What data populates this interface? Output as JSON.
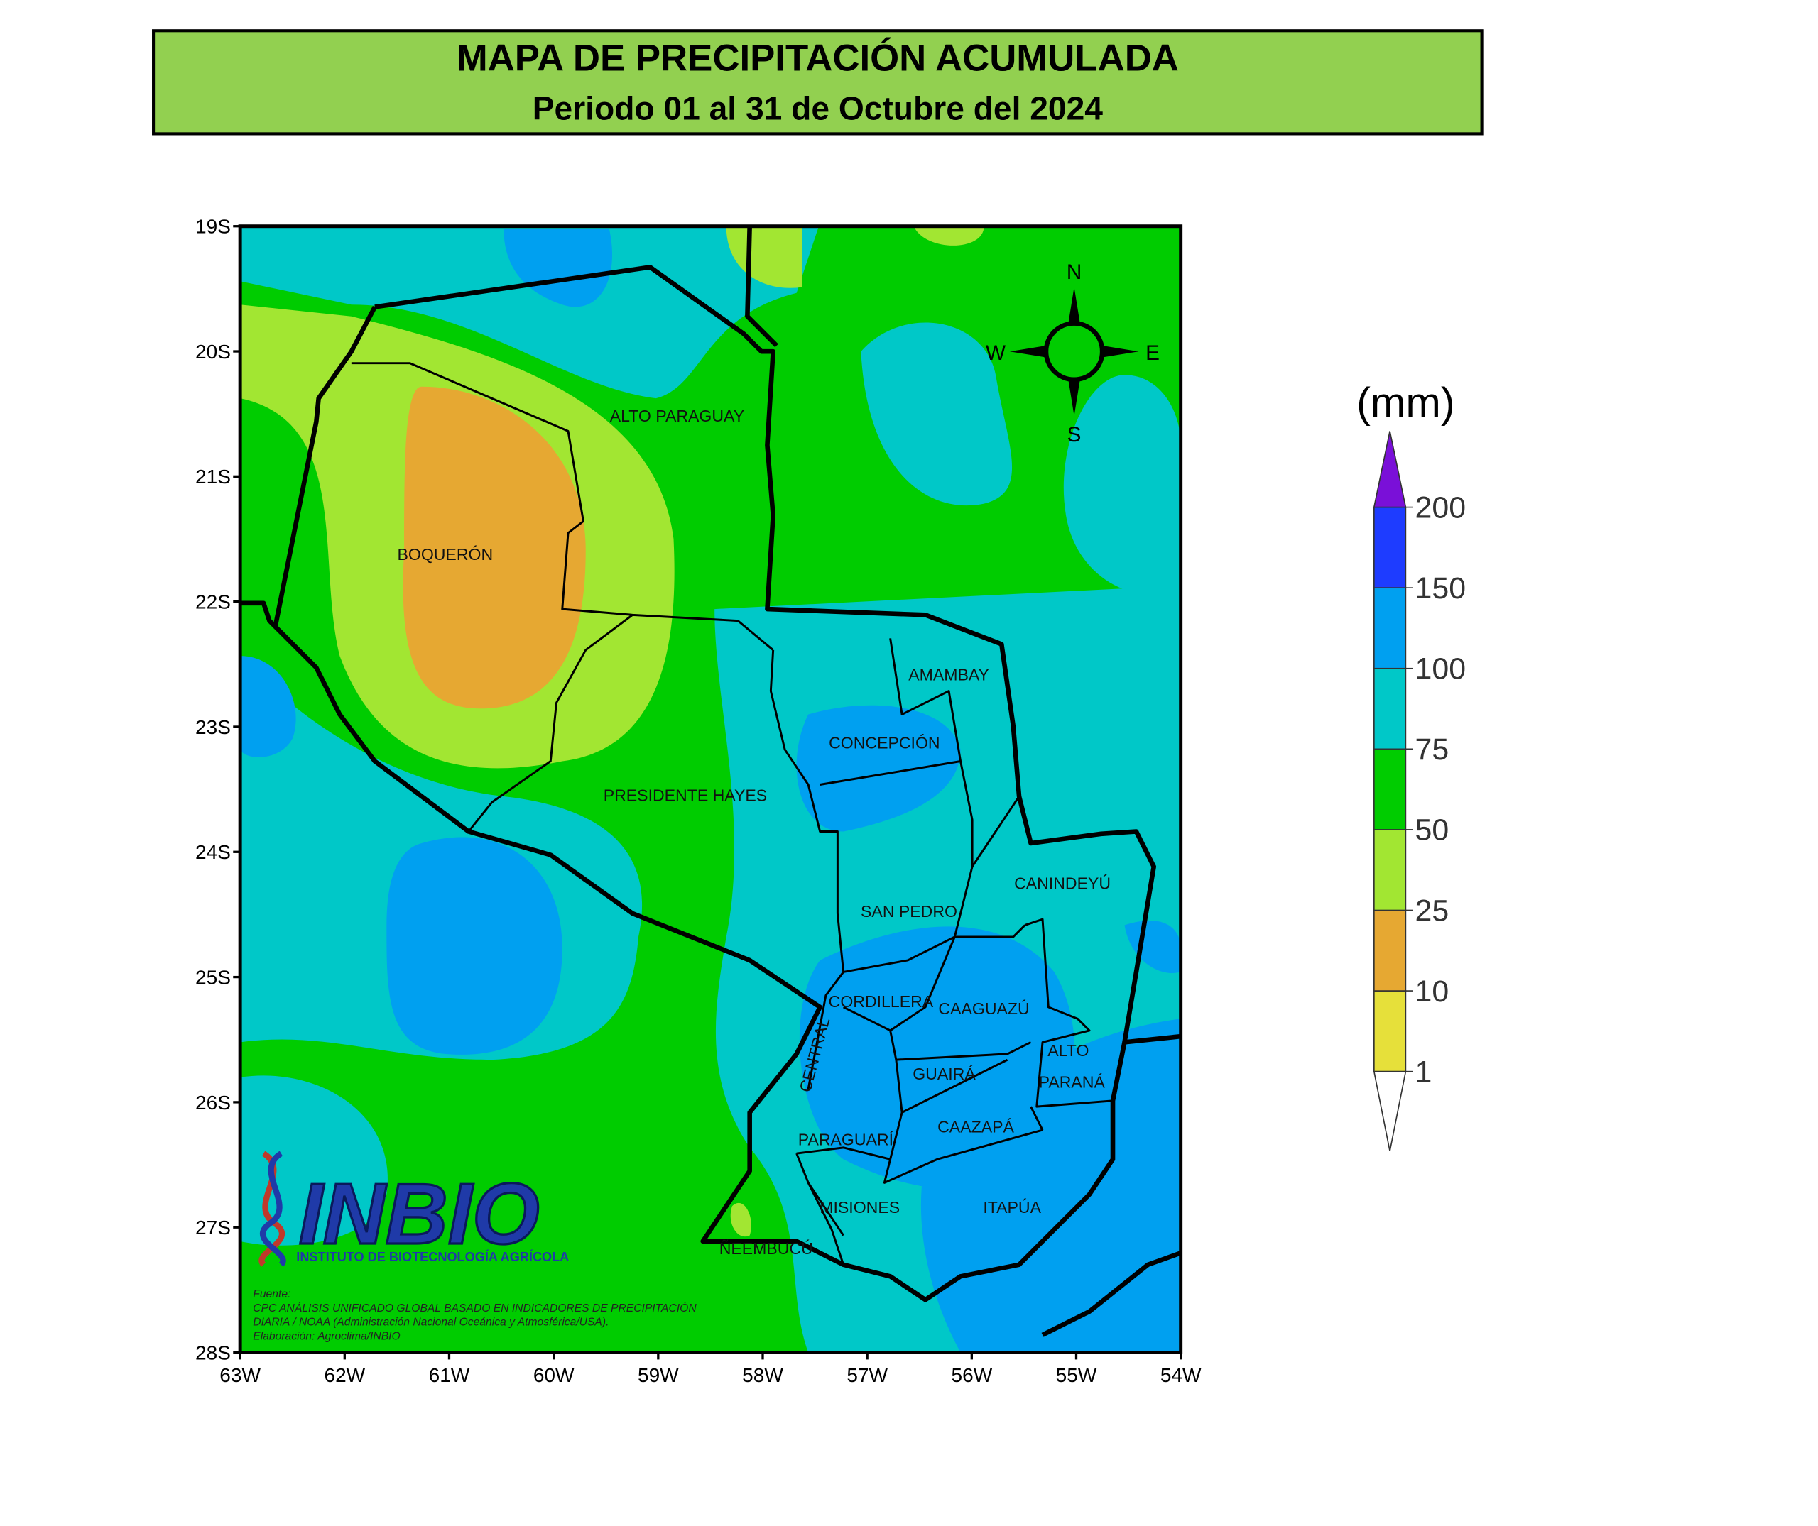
{
  "header": {
    "title": "MAPA DE PRECIPITACIÓN ACUMULADA",
    "subtitle": "Periodo 01 al 31 de Octubre del 2024"
  },
  "map": {
    "lat_labels": [
      "19S",
      "20S",
      "21S",
      "22S",
      "23S",
      "24S",
      "25S",
      "26S",
      "27S",
      "28S"
    ],
    "lon_labels": [
      "63W",
      "62W",
      "61W",
      "60W",
      "59W",
      "58W",
      "57W",
      "56W",
      "55W",
      "54W"
    ],
    "compass": {
      "n": "N",
      "s": "S",
      "e": "E",
      "w": "W"
    },
    "departments": [
      "ALTO PARAGUAY",
      "BOQUERÓN",
      "PRESIDENTE HAYES",
      "AMAMBAY",
      "CONCEPCIÓN",
      "SAN PEDRO",
      "CANINDEYÚ",
      "CORDILLERA",
      "CAAGUAZÚ",
      "CENTRAL",
      "ALTO",
      "PARANÁ",
      "GUAIRÁ",
      "CAAZAPÁ",
      "PARAGUARÍ",
      "MISIONES",
      "ITAPÚA",
      "ÑEEMBUCÚ"
    ],
    "logo": {
      "name": "INBIO",
      "full": "INSTITUTO DE BIOTECNOLOGÍA AGRÍCOLA"
    },
    "source": [
      "Fuente:",
      "CPC ANÁLISIS UNIFICADO GLOBAL BASADO EN INDICADORES DE PRECIPITACIÓN",
      "DIARIA / NOAA (Administración Nacional Oceánica y Atmosférica/USA).",
      "Elaboración: Agroclima/INBIO"
    ]
  },
  "legend": {
    "unit": "(mm)",
    "levels": [
      "1",
      "10",
      "25",
      "50",
      "75",
      "100",
      "150",
      "200"
    ],
    "colors": [
      "#e6e03a",
      "#e6a832",
      "#a2e632",
      "#00cc00",
      "#00c8c8",
      "#00a0f0",
      "#1e3cff",
      "#7a10d8"
    ]
  }
}
